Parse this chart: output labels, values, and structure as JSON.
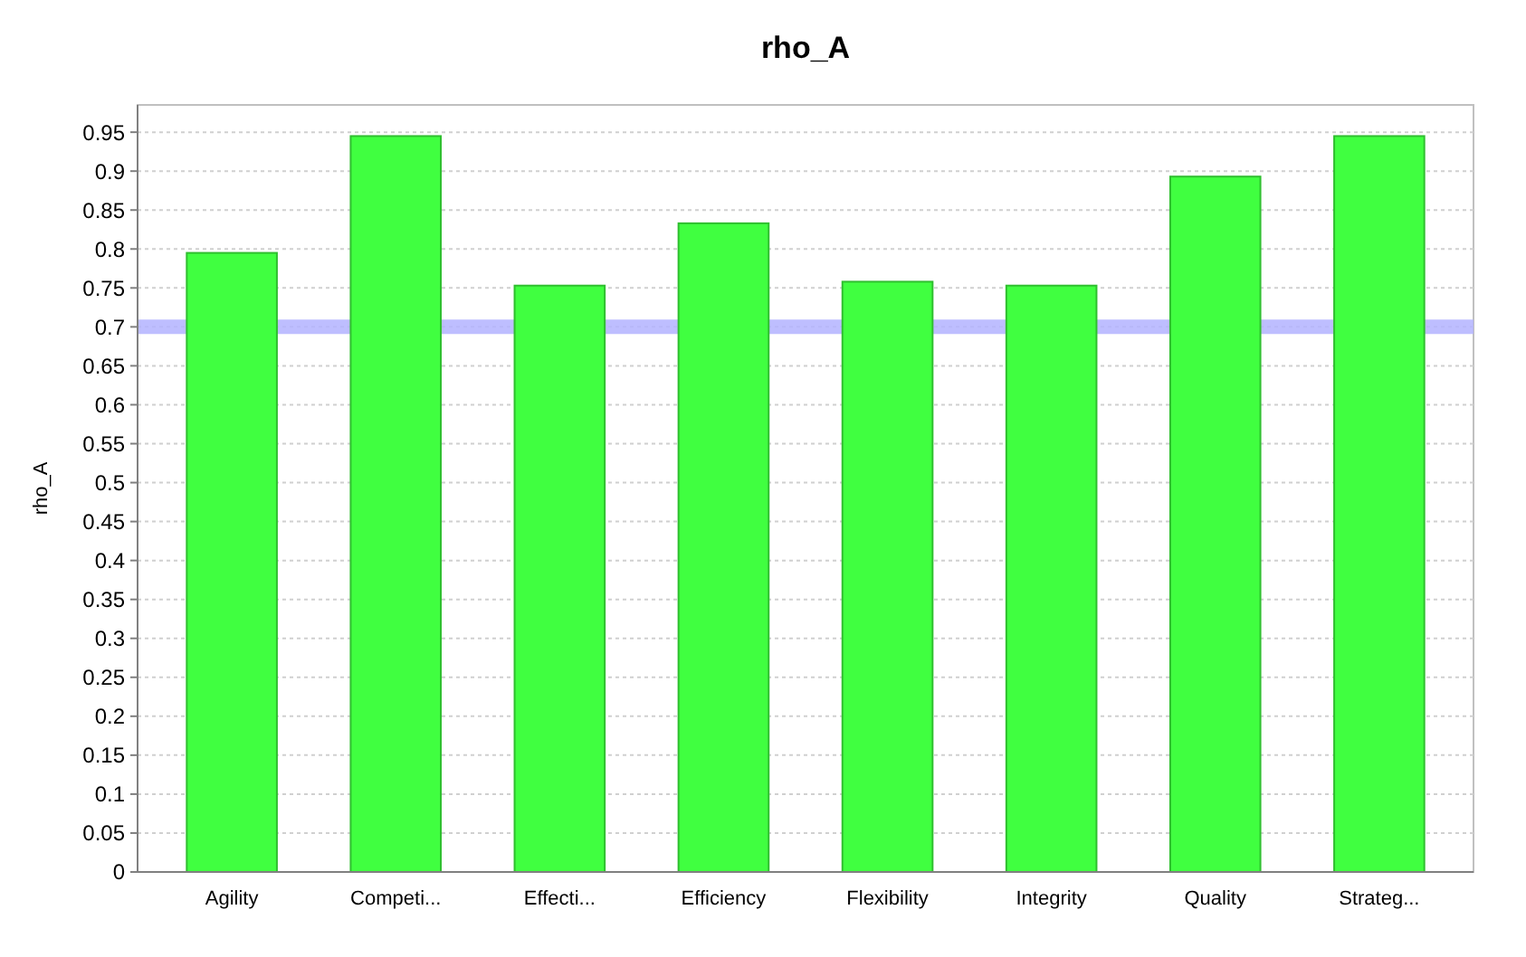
{
  "chart_data": {
    "type": "bar",
    "title": "rho_A",
    "ylabel": "rho_A",
    "categories": [
      "Agility",
      "Competi...",
      "Effecti...",
      "Efficiency",
      "Flexibility",
      "Integrity",
      "Quality",
      "Strateg..."
    ],
    "values": [
      0.795,
      0.945,
      0.753,
      0.833,
      0.758,
      0.753,
      0.893,
      0.945
    ],
    "color": "#40ff40",
    "ylim": [
      0,
      0.985
    ],
    "yticks": [
      0,
      0.05,
      0.1,
      0.15,
      0.2,
      0.25,
      0.3,
      0.35,
      0.4,
      0.45,
      0.5,
      0.55,
      0.6,
      0.65,
      0.7,
      0.75,
      0.8,
      0.85,
      0.9,
      0.95
    ],
    "grid": "y",
    "ref_lines": [
      {
        "axis": "y",
        "value": 0.7,
        "color": "#b3b3ff"
      }
    ]
  }
}
